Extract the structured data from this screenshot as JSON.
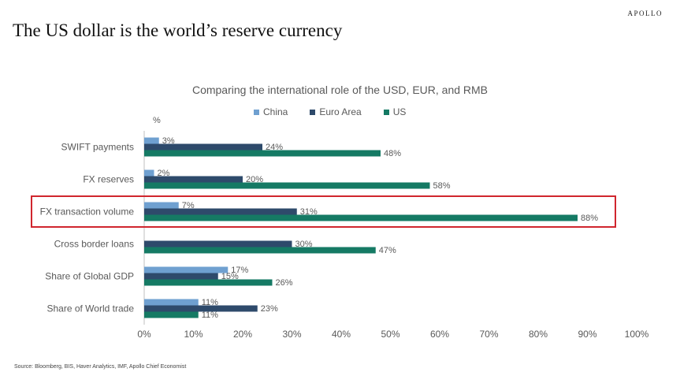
{
  "brand": "APOLLO",
  "headline": "The US dollar is the world’s reserve currency",
  "source": "Source: Bloomberg, BIS, Haver Analytics, IMF, Apollo Chief Economist",
  "colors": {
    "China": "#6fa0d0",
    "Euro Area": "#2e4a6b",
    "US": "#157a64",
    "highlight": "#d0262e"
  },
  "chart_data": {
    "type": "bar",
    "orientation": "horizontal",
    "title": "Comparing the international role of the USD, EUR, and RMB",
    "unit_label": "%",
    "categories": [
      "SWIFT payments",
      "FX reserves",
      "FX transaction volume",
      "Cross border loans",
      "Share of Global GDP",
      "Share of World trade"
    ],
    "series": [
      {
        "name": "China",
        "values": [
          3,
          2,
          7,
          null,
          17,
          11
        ]
      },
      {
        "name": "Euro Area",
        "values": [
          24,
          20,
          31,
          30,
          15,
          23
        ]
      },
      {
        "name": "US",
        "values": [
          48,
          58,
          88,
          47,
          26,
          11
        ]
      }
    ],
    "xlim": [
      0,
      100
    ],
    "xticks": [
      "0%",
      "10%",
      "20%",
      "30%",
      "40%",
      "50%",
      "60%",
      "70%",
      "80%",
      "90%",
      "100%"
    ],
    "highlighted_category": "FX transaction volume",
    "legend_position": "top"
  }
}
